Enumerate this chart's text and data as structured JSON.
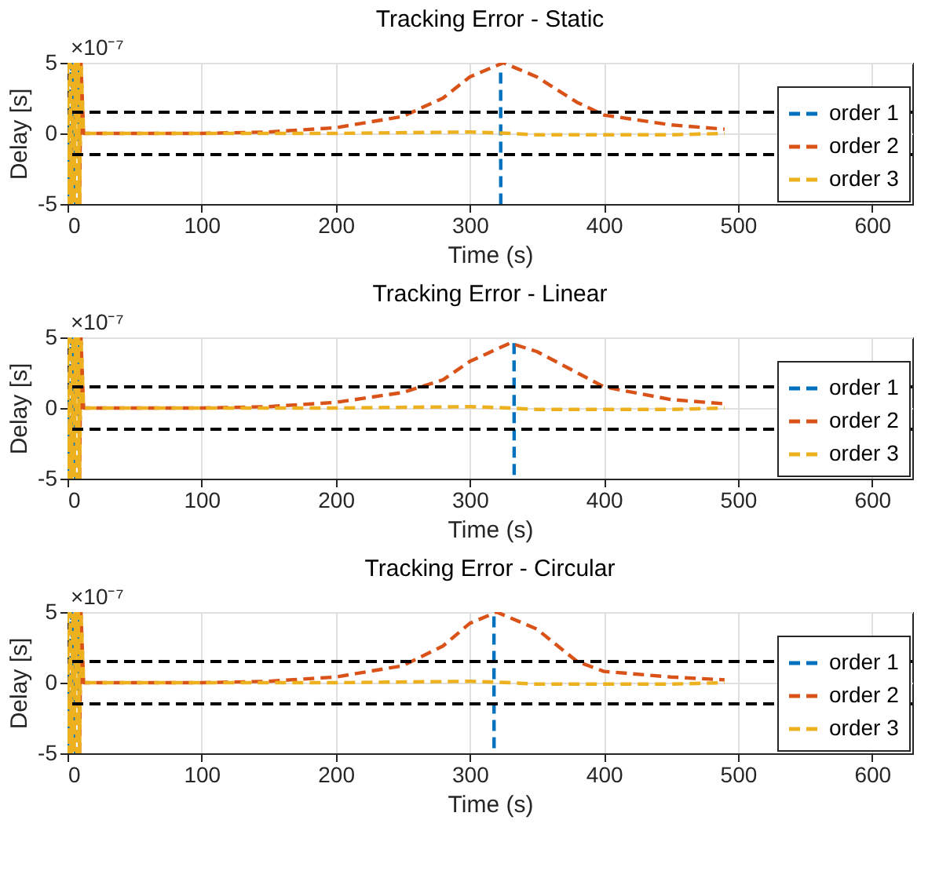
{
  "chart_data": [
    {
      "type": "line",
      "title": "Tracking Error - Static",
      "xlabel": "Time (s)",
      "ylabel": "Delay [s]",
      "annotations": [
        "×10⁻⁷"
      ],
      "xlim": [
        0,
        630
      ],
      "xticks": [
        0,
        100,
        200,
        300,
        400,
        500,
        600
      ],
      "ylim": [
        -5,
        5
      ],
      "yticks": [
        -5,
        0,
        5
      ],
      "grid": true,
      "legend": "bottom right",
      "line_style": "dashed",
      "ref_lines": [
        {
          "axis": "y",
          "value": 1.5,
          "color": "#000000",
          "line_style": "dashed"
        },
        {
          "axis": "y",
          "value": -1.5,
          "color": "#000000",
          "line_style": "dashed"
        }
      ],
      "series": [
        {
          "name": "order 1",
          "color": "#0072bd",
          "x": [
            0,
            3,
            6,
            9,
            9.5,
            323,
            323.1
          ],
          "values": [
            -5,
            5,
            -5,
            5,
            null,
            4.3,
            -5
          ]
        },
        {
          "name": "order 2",
          "color": "#d95319",
          "x": [
            9,
            10,
            12,
            50,
            100,
            150,
            200,
            250,
            280,
            300,
            325,
            350,
            380,
            400,
            450,
            490
          ],
          "values": [
            -5,
            5,
            0,
            0,
            0,
            0.1,
            0.4,
            1.2,
            2.5,
            4,
            5,
            4,
            2.2,
            1.3,
            0.6,
            0.3
          ]
        },
        {
          "name": "order 3",
          "color": "#edb120",
          "x": [
            0,
            1,
            2,
            3,
            4,
            5,
            6,
            7,
            8,
            9,
            10,
            12,
            100,
            200,
            300,
            330,
            350,
            400,
            450,
            490
          ],
          "values": [
            5,
            -5,
            5,
            -5,
            5,
            -5,
            5,
            -5,
            5,
            -5,
            5,
            0,
            0,
            0,
            0.1,
            0,
            -0.1,
            -0.1,
            -0.1,
            0
          ]
        }
      ]
    },
    {
      "type": "line",
      "title": "Tracking Error - Linear",
      "xlabel": "Time (s)",
      "ylabel": "Delay [s]",
      "annotations": [
        "×10⁻⁷"
      ],
      "xlim": [
        0,
        630
      ],
      "xticks": [
        0,
        100,
        200,
        300,
        400,
        500,
        600
      ],
      "ylim": [
        -5,
        5
      ],
      "yticks": [
        -5,
        0,
        5
      ],
      "grid": true,
      "legend": "bottom right",
      "line_style": "dashed",
      "ref_lines": [
        {
          "axis": "y",
          "value": 1.5,
          "color": "#000000",
          "line_style": "dashed"
        },
        {
          "axis": "y",
          "value": -1.5,
          "color": "#000000",
          "line_style": "dashed"
        }
      ],
      "series": [
        {
          "name": "order 1",
          "color": "#0072bd",
          "x": [
            0,
            3,
            6,
            9,
            9.5,
            333,
            333.1
          ],
          "values": [
            -5,
            5,
            -5,
            5,
            null,
            4.6,
            -5
          ]
        },
        {
          "name": "order 2",
          "color": "#d95319",
          "x": [
            9,
            10,
            12,
            50,
            100,
            150,
            200,
            250,
            280,
            300,
            330,
            350,
            380,
            400,
            450,
            490
          ],
          "values": [
            -5,
            5,
            0,
            0,
            0,
            0.1,
            0.4,
            1.1,
            2,
            3.3,
            4.6,
            4,
            2.5,
            1.5,
            0.6,
            0.3
          ]
        },
        {
          "name": "order 3",
          "color": "#edb120",
          "x": [
            0,
            1,
            2,
            3,
            4,
            5,
            6,
            7,
            8,
            9,
            10,
            12,
            100,
            200,
            300,
            330,
            350,
            400,
            450,
            490
          ],
          "values": [
            5,
            -5,
            5,
            -5,
            5,
            -5,
            5,
            -5,
            5,
            -5,
            5,
            0,
            0,
            0,
            0.1,
            0,
            -0.1,
            -0.1,
            -0.1,
            0
          ]
        }
      ]
    },
    {
      "type": "line",
      "title": "Tracking Error - Circular",
      "xlabel": "Time (s)",
      "ylabel": "Delay [s]",
      "annotations": [
        "×10⁻⁷"
      ],
      "xlim": [
        0,
        630
      ],
      "xticks": [
        0,
        100,
        200,
        300,
        400,
        500,
        600
      ],
      "ylim": [
        -5,
        5
      ],
      "yticks": [
        -5,
        0,
        5
      ],
      "grid": true,
      "legend": "bottom right",
      "line_style": "dashed",
      "ref_lines": [
        {
          "axis": "y",
          "value": 1.5,
          "color": "#000000",
          "line_style": "dashed"
        },
        {
          "axis": "y",
          "value": -1.5,
          "color": "#000000",
          "line_style": "dashed"
        }
      ],
      "series": [
        {
          "name": "order 1",
          "color": "#0072bd",
          "x": [
            0,
            3,
            6,
            9,
            9.5,
            318,
            318.1
          ],
          "values": [
            -5,
            5,
            -5,
            5,
            null,
            4.7,
            -5
          ]
        },
        {
          "name": "order 2",
          "color": "#d95319",
          "x": [
            9,
            10,
            12,
            50,
            100,
            150,
            200,
            250,
            280,
            300,
            320,
            350,
            380,
            400,
            450,
            490
          ],
          "values": [
            -5,
            5,
            0,
            0,
            0,
            0.1,
            0.4,
            1.2,
            2.6,
            4.2,
            5,
            3.8,
            1.5,
            0.8,
            0.4,
            0.2
          ]
        },
        {
          "name": "order 3",
          "color": "#edb120",
          "x": [
            0,
            1,
            2,
            3,
            4,
            5,
            6,
            7,
            8,
            9,
            10,
            12,
            100,
            200,
            300,
            330,
            350,
            400,
            450,
            490
          ],
          "values": [
            5,
            -5,
            5,
            -5,
            5,
            -5,
            5,
            -5,
            5,
            -5,
            5,
            0,
            0,
            0,
            0.1,
            0,
            -0.1,
            -0.1,
            -0.1,
            0
          ]
        }
      ]
    }
  ]
}
